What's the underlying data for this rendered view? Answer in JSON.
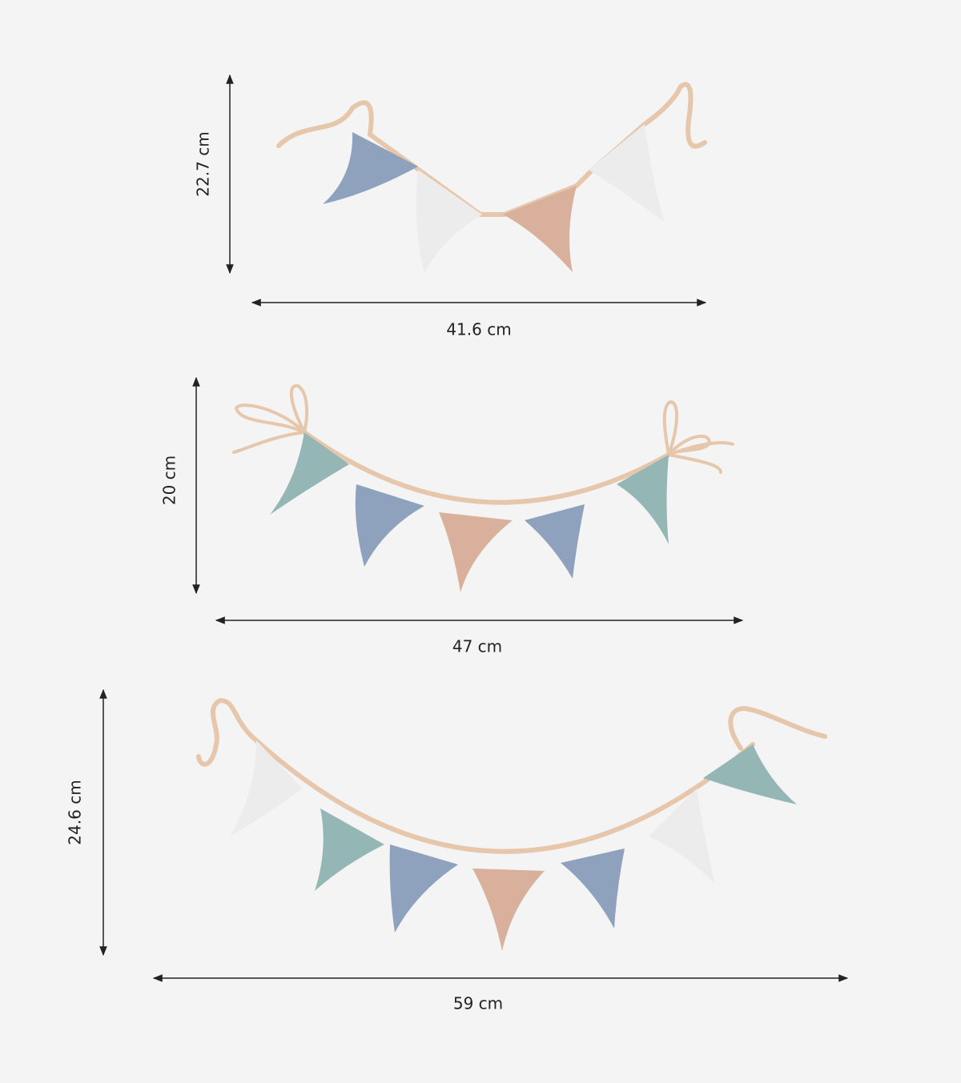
{
  "garlands": [
    {
      "height": "22.7 cm",
      "width": "41.6 cm"
    },
    {
      "height": "20 cm",
      "width": "47 cm"
    },
    {
      "height": "24.6 cm",
      "width": "59 cm"
    }
  ]
}
